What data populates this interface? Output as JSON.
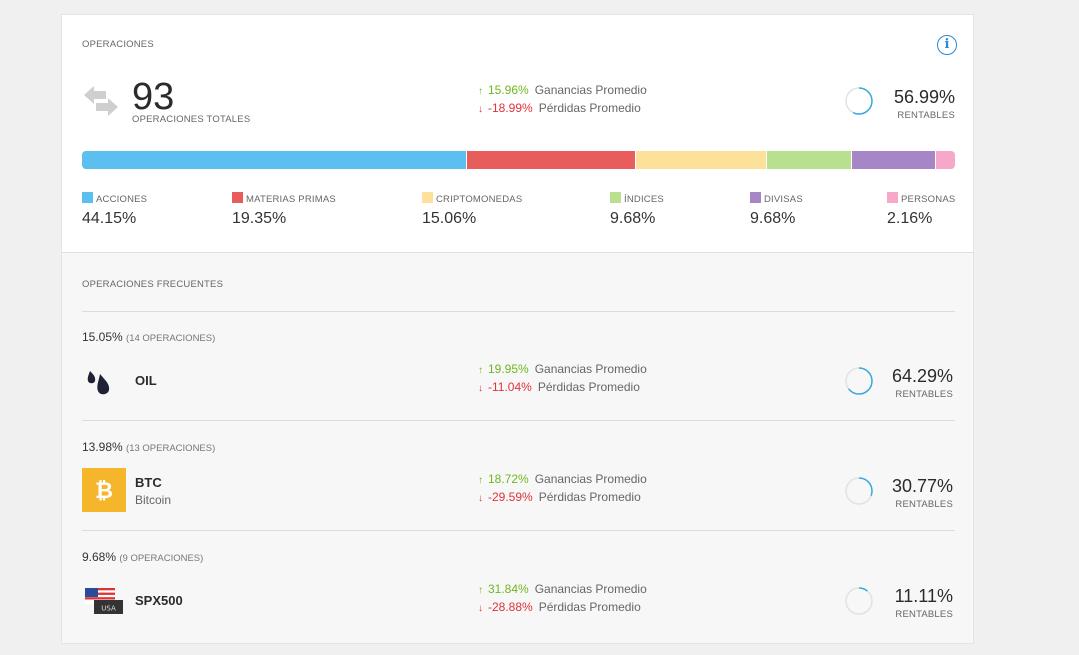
{
  "overview": {
    "title": "OPERACIONES",
    "info_icon": "info-icon",
    "total": "93",
    "total_label": "OPERACIONES TOTALES",
    "gain_pct": "15.96%",
    "gain_label": "Ganancias Promedio",
    "loss_pct": "-18.99%",
    "loss_label": "Pérdidas Promedio",
    "profitable_pct": "56.99%",
    "profitable_value": 56.99,
    "profitable_label": "RENTABLES"
  },
  "distribution": [
    {
      "label": "ACCIONES",
      "pct": "44.15%",
      "value": 44.15,
      "color": "#5bc0f0"
    },
    {
      "label": "MATERIAS PRIMAS",
      "pct": "19.35%",
      "value": 19.35,
      "color": "#e85c5c"
    },
    {
      "label": "CRIPTOMONEDAS",
      "pct": "15.06%",
      "value": 15.06,
      "color": "#fde09a"
    },
    {
      "label": "ÍNDICES",
      "pct": "9.68%",
      "value": 9.68,
      "color": "#b9e08e"
    },
    {
      "label": "DIVISAS",
      "pct": "9.68%",
      "value": 9.68,
      "color": "#a686c6"
    },
    {
      "label": "PERSONAS",
      "pct": "2.16%",
      "value": 2.16,
      "color": "#f7a7c8"
    }
  ],
  "frequent": {
    "title": "OPERACIONES FRECUENTES",
    "items": [
      {
        "share": "15.05%",
        "ops": "(14 OPERACIONES)",
        "symbol": "OIL",
        "name": "",
        "icon": "oil-drops-icon",
        "gain_pct": "19.95%",
        "gain_label": "Ganancias Promedio",
        "loss_pct": "-11.04%",
        "loss_label": "Pérdidas Promedio",
        "profitable_pct": "64.29%",
        "profitable_value": 64.29,
        "profitable_label": "RENTABLES"
      },
      {
        "share": "13.98%",
        "ops": "(13 OPERACIONES)",
        "symbol": "BTC",
        "name": "Bitcoin",
        "icon": "bitcoin-icon",
        "gain_pct": "18.72%",
        "gain_label": "Ganancias Promedio",
        "loss_pct": "-29.59%",
        "loss_label": "Pérdidas Promedio",
        "profitable_pct": "30.77%",
        "profitable_value": 30.77,
        "profitable_label": "RENTABLES"
      },
      {
        "share": "9.68%",
        "ops": "(9 OPERACIONES)",
        "symbol": "SPX500",
        "name": "",
        "icon": "usa-flag-icon",
        "icon_text": "USA",
        "gain_pct": "31.84%",
        "gain_label": "Ganancias Promedio",
        "loss_pct": "-28.88%",
        "loss_label": "Pérdidas Promedio",
        "profitable_pct": "11.11%",
        "profitable_value": 11.11,
        "profitable_label": "RENTABLES"
      }
    ]
  },
  "colors": {
    "gain": "#6fb81e",
    "loss": "#e0323b",
    "ring": "#3aa8e0",
    "ring_track": "#e2e2e2"
  }
}
